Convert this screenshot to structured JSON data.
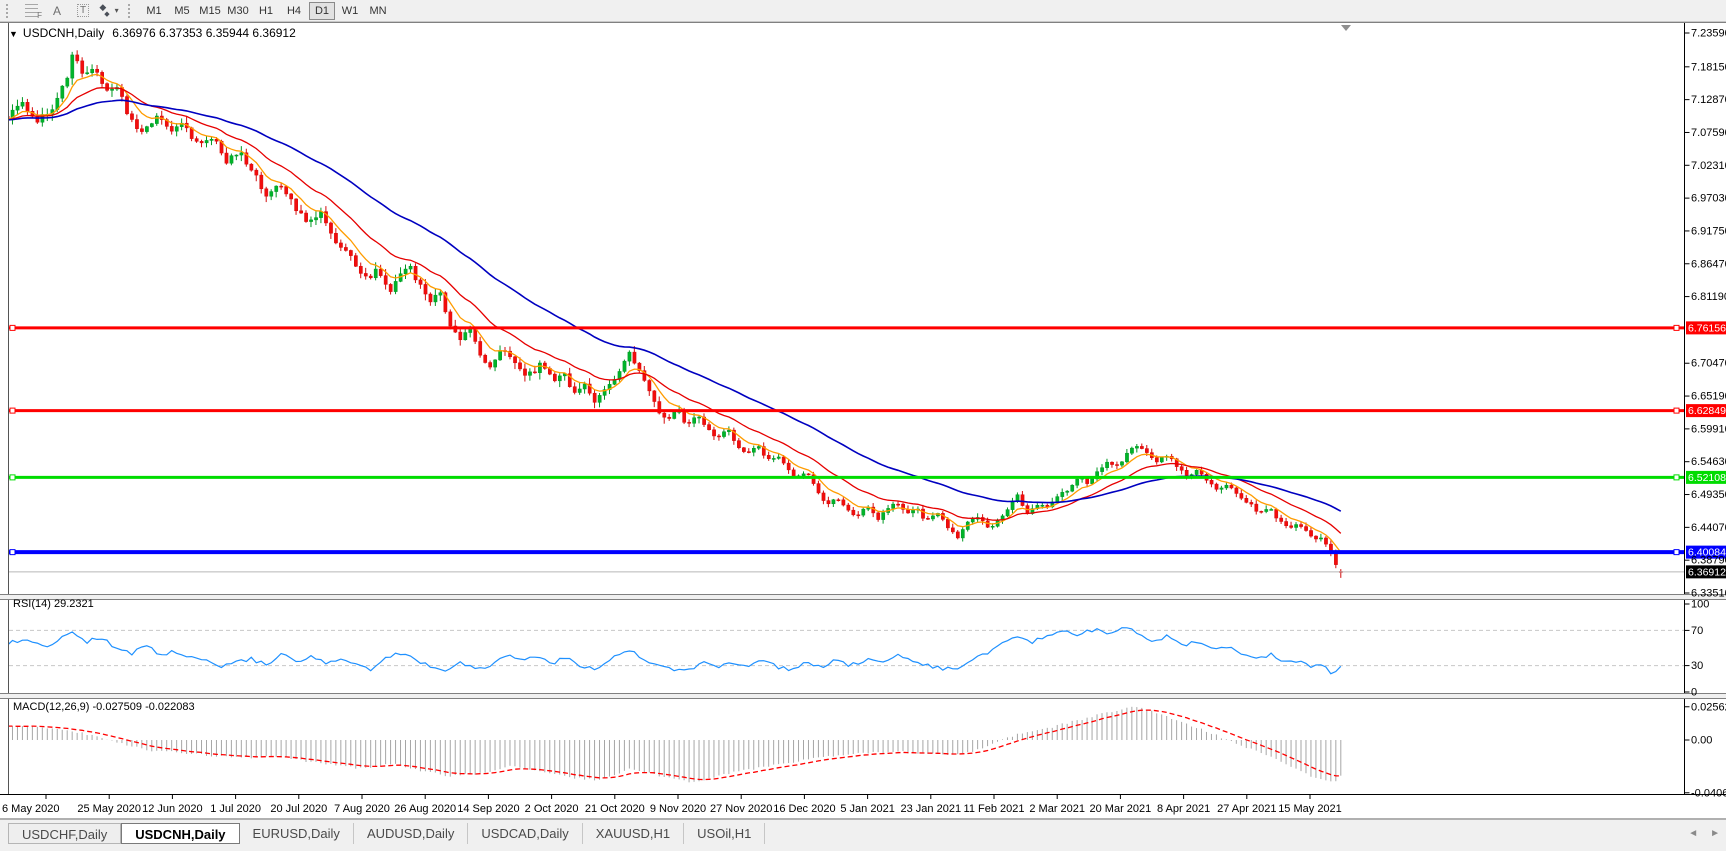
{
  "toolbar": {
    "tools": [
      {
        "name": "fibonacci",
        "glyph": "F"
      },
      {
        "name": "text",
        "glyph": "A"
      },
      {
        "name": "label",
        "glyph": "T"
      },
      {
        "name": "arrows",
        "glyph": "◆",
        "caret": "▾"
      }
    ],
    "timeframes": [
      {
        "label": "M1",
        "active": false
      },
      {
        "label": "M5",
        "active": false
      },
      {
        "label": "M15",
        "active": false
      },
      {
        "label": "M30",
        "active": false
      },
      {
        "label": "H1",
        "active": false
      },
      {
        "label": "H4",
        "active": false
      },
      {
        "label": "D1",
        "active": true
      },
      {
        "label": "W1",
        "active": false
      },
      {
        "label": "MN",
        "active": false
      }
    ]
  },
  "chart": {
    "collapse_icon": "▼",
    "title": "USDCNH,Daily",
    "ohlc_text": "6.36976 6.37353 6.35944 6.36912"
  },
  "price_axis": {
    "ticks": [
      "7.23590",
      "7.18150",
      "7.12870",
      "7.07590",
      "7.02310",
      "6.97030",
      "6.91750",
      "6.86470",
      "6.81190",
      "6.70470",
      "6.65190",
      "6.59910",
      "6.54630",
      "6.49350",
      "6.44070",
      "6.38790",
      "6.33510"
    ]
  },
  "time_axis": {
    "labels": [
      "6 May 2020",
      "25 May 2020",
      "12 Jun 2020",
      "1 Jul 2020",
      "20 Jul 2020",
      "7 Aug 2020",
      "26 Aug 2020",
      "14 Sep 2020",
      "2 Oct 2020",
      "21 Oct 2020",
      "9 Nov 2020",
      "27 Nov 2020",
      "16 Dec 2020",
      "5 Jan 2021",
      "23 Jan 2021",
      "11 Feb 2021",
      "2 Mar 2021",
      "20 Mar 2021",
      "8 Apr 2021",
      "27 Apr 2021",
      "15 May 2021"
    ]
  },
  "indicators": {
    "rsi": {
      "label": "RSI(14)",
      "value": "29.2321",
      "scale": [
        "100",
        "70",
        "30",
        "0"
      ],
      "levels": [
        30,
        70
      ],
      "range": [
        0,
        100
      ]
    },
    "macd": {
      "label": "MACD(12,26,9)",
      "values": "-0.027509 -0.022083",
      "scale": [
        "0.025623",
        "0.00",
        "-0.040687"
      ]
    }
  },
  "tabs": [
    {
      "label": "USDCHF,Daily",
      "active": false
    },
    {
      "label": "USDCNH,Daily",
      "active": true
    },
    {
      "label": "EURUSD,Daily",
      "active": false
    },
    {
      "label": "AUDUSD,Daily",
      "active": false
    },
    {
      "label": "USDCAD,Daily",
      "active": false
    },
    {
      "label": "XAUUSD,H1",
      "active": false
    },
    {
      "label": "USOil,H1",
      "active": false
    }
  ],
  "scroll_arrows": {
    "left": "◄",
    "right": "►"
  },
  "colors": {
    "bull": "#00B42A",
    "bull_edge": "#009823",
    "bear": "#F20D0D",
    "bear_edge": "#D40B0B",
    "ma_fast": "#FF9C00",
    "ma_mid": "#E60000",
    "ma_slow": "#0000C0",
    "rsi_line": "#1E90FF",
    "macd_hist": "#A6A6A6",
    "macd_signal": "#FF0000",
    "current_price_line": "#B8B8B8",
    "current_label_bg": "#000000",
    "level_dash": "#C8C8C8",
    "axis_text": "#000000"
  },
  "chart_data": {
    "type": "candlestick",
    "symbol": "USDCNH",
    "timeframe": "Daily",
    "last_ohlc": {
      "open": 6.36976,
      "high": 6.37353,
      "low": 6.35944,
      "close": 6.36912
    },
    "price_range_ticks": [
      7.2359,
      6.3351
    ],
    "horizontal_lines": [
      {
        "price": 6.76156,
        "label": "6.76156",
        "color": "#FF0000",
        "width": 3
      },
      {
        "price": 6.62849,
        "label": "6.62849",
        "color": "#FF0000",
        "width": 3
      },
      {
        "price": 6.52108,
        "label": "6.52108",
        "color": "#00DC00",
        "width": 3
      },
      {
        "price": 6.40084,
        "label": "6.40084",
        "color": "#0000FF",
        "width": 4
      }
    ],
    "current_price": {
      "value": 6.36912,
      "label": "6.36912"
    },
    "close_path_anchors": [
      [
        6,
        7.1
      ],
      [
        20,
        7.125
      ],
      [
        35,
        7.09
      ],
      [
        50,
        7.115
      ],
      [
        65,
        7.16
      ],
      [
        72,
        7.205
      ],
      [
        80,
        7.175
      ],
      [
        95,
        7.18
      ],
      [
        105,
        7.14
      ],
      [
        115,
        7.155
      ],
      [
        128,
        7.1
      ],
      [
        142,
        7.075
      ],
      [
        155,
        7.1
      ],
      [
        168,
        7.08
      ],
      [
        180,
        7.095
      ],
      [
        195,
        7.06
      ],
      [
        210,
        7.07
      ],
      [
        225,
        7.03
      ],
      [
        238,
        7.045
      ],
      [
        252,
        7.01
      ],
      [
        265,
        6.975
      ],
      [
        280,
        6.99
      ],
      [
        292,
        6.96
      ],
      [
        305,
        6.93
      ],
      [
        320,
        6.945
      ],
      [
        335,
        6.9
      ],
      [
        350,
        6.875
      ],
      [
        365,
        6.84
      ],
      [
        375,
        6.855
      ],
      [
        388,
        6.82
      ],
      [
        398,
        6.845
      ],
      [
        408,
        6.86
      ],
      [
        418,
        6.83
      ],
      [
        428,
        6.8
      ],
      [
        438,
        6.822
      ],
      [
        448,
        6.768
      ],
      [
        458,
        6.745
      ],
      [
        468,
        6.76
      ],
      [
        478,
        6.718
      ],
      [
        490,
        6.7
      ],
      [
        503,
        6.73
      ],
      [
        515,
        6.7
      ],
      [
        527,
        6.685
      ],
      [
        540,
        6.703
      ],
      [
        552,
        6.675
      ],
      [
        562,
        6.692
      ],
      [
        572,
        6.655
      ],
      [
        582,
        6.676
      ],
      [
        592,
        6.64
      ],
      [
        602,
        6.66
      ],
      [
        612,
        6.678
      ],
      [
        622,
        6.705
      ],
      [
        628,
        6.728
      ],
      [
        636,
        6.695
      ],
      [
        646,
        6.662
      ],
      [
        656,
        6.63
      ],
      [
        666,
        6.615
      ],
      [
        676,
        6.635
      ],
      [
        686,
        6.6
      ],
      [
        696,
        6.618
      ],
      [
        706,
        6.598
      ],
      [
        716,
        6.58
      ],
      [
        726,
        6.6
      ],
      [
        736,
        6.57
      ],
      [
        746,
        6.556
      ],
      [
        756,
        6.575
      ],
      [
        766,
        6.548
      ],
      [
        776,
        6.56
      ],
      [
        786,
        6.535
      ],
      [
        796,
        6.52
      ],
      [
        806,
        6.53
      ],
      [
        816,
        6.5
      ],
      [
        826,
        6.476
      ],
      [
        836,
        6.49
      ],
      [
        846,
        6.47
      ],
      [
        856,
        6.46
      ],
      [
        866,
        6.475
      ],
      [
        876,
        6.455
      ],
      [
        886,
        6.47
      ],
      [
        896,
        6.48
      ],
      [
        906,
        6.46
      ],
      [
        916,
        6.47
      ],
      [
        926,
        6.45
      ],
      [
        936,
        6.462
      ],
      [
        946,
        6.44
      ],
      [
        956,
        6.426
      ],
      [
        966,
        6.446
      ],
      [
        976,
        6.46
      ],
      [
        986,
        6.44
      ],
      [
        996,
        6.452
      ],
      [
        1006,
        6.47
      ],
      [
        1016,
        6.49
      ],
      [
        1026,
        6.462
      ],
      [
        1036,
        6.48
      ],
      [
        1046,
        6.47
      ],
      [
        1056,
        6.492
      ],
      [
        1066,
        6.502
      ],
      [
        1076,
        6.52
      ],
      [
        1086,
        6.512
      ],
      [
        1096,
        6.532
      ],
      [
        1106,
        6.546
      ],
      [
        1116,
        6.54
      ],
      [
        1126,
        6.56
      ],
      [
        1136,
        6.576
      ],
      [
        1146,
        6.56
      ],
      [
        1156,
        6.546
      ],
      [
        1166,
        6.556
      ],
      [
        1176,
        6.54
      ],
      [
        1186,
        6.522
      ],
      [
        1196,
        6.532
      ],
      [
        1206,
        6.512
      ],
      [
        1216,
        6.502
      ],
      [
        1226,
        6.512
      ],
      [
        1236,
        6.492
      ],
      [
        1246,
        6.482
      ],
      [
        1256,
        6.466
      ],
      [
        1266,
        6.472
      ],
      [
        1276,
        6.456
      ],
      [
        1286,
        6.442
      ],
      [
        1296,
        6.448
      ],
      [
        1306,
        6.432
      ],
      [
        1314,
        6.42
      ],
      [
        1320,
        6.426
      ],
      [
        1326,
        6.408
      ],
      [
        1332,
        6.39
      ],
      [
        1337,
        6.376
      ],
      [
        1341,
        6.369
      ]
    ],
    "moving_averages": [
      {
        "name": "fast",
        "period": 7,
        "color": "#FF9C00"
      },
      {
        "name": "mid",
        "period": 18,
        "color": "#E60000"
      },
      {
        "name": "slow",
        "period": 45,
        "color": "#0000C0"
      }
    ],
    "rsi": {
      "params": "14",
      "current": 29.2321,
      "anchors": [
        [
          6,
          55
        ],
        [
          25,
          60
        ],
        [
          45,
          52
        ],
        [
          60,
          62
        ],
        [
          72,
          68
        ],
        [
          85,
          57
        ],
        [
          100,
          62
        ],
        [
          115,
          50
        ],
        [
          130,
          44
        ],
        [
          145,
          52
        ],
        [
          160,
          42
        ],
        [
          175,
          46
        ],
        [
          190,
          38
        ],
        [
          205,
          35
        ],
        [
          220,
          30
        ],
        [
          235,
          33
        ],
        [
          250,
          38
        ],
        [
          265,
          30
        ],
        [
          280,
          42
        ],
        [
          295,
          34
        ],
        [
          310,
          40
        ],
        [
          325,
          32
        ],
        [
          340,
          36
        ],
        [
          355,
          30
        ],
        [
          370,
          26
        ],
        [
          385,
          38
        ],
        [
          400,
          44
        ],
        [
          415,
          35
        ],
        [
          430,
          30
        ],
        [
          445,
          25
        ],
        [
          460,
          33
        ],
        [
          475,
          27
        ],
        [
          490,
          31
        ],
        [
          505,
          42
        ],
        [
          520,
          37
        ],
        [
          535,
          41
        ],
        [
          550,
          33
        ],
        [
          565,
          39
        ],
        [
          580,
          30
        ],
        [
          595,
          27
        ],
        [
          610,
          39
        ],
        [
          622,
          45
        ],
        [
          628,
          48
        ],
        [
          640,
          37
        ],
        [
          655,
          29
        ],
        [
          670,
          27
        ],
        [
          685,
          24
        ],
        [
          700,
          33
        ],
        [
          715,
          27
        ],
        [
          730,
          35
        ],
        [
          745,
          28
        ],
        [
          760,
          34
        ],
        [
          775,
          29
        ],
        [
          790,
          26
        ],
        [
          805,
          34
        ],
        [
          820,
          28
        ],
        [
          835,
          36
        ],
        [
          850,
          30
        ],
        [
          865,
          37
        ],
        [
          880,
          33
        ],
        [
          895,
          42
        ],
        [
          910,
          36
        ],
        [
          925,
          31
        ],
        [
          940,
          27
        ],
        [
          955,
          24
        ],
        [
          970,
          38
        ],
        [
          985,
          44
        ],
        [
          1000,
          54
        ],
        [
          1015,
          61
        ],
        [
          1030,
          56
        ],
        [
          1045,
          63
        ],
        [
          1060,
          69
        ],
        [
          1075,
          65
        ],
        [
          1090,
          71
        ],
        [
          1105,
          67
        ],
        [
          1120,
          72
        ],
        [
          1135,
          68
        ],
        [
          1150,
          59
        ],
        [
          1165,
          63
        ],
        [
          1180,
          53
        ],
        [
          1195,
          57
        ],
        [
          1210,
          49
        ],
        [
          1225,
          52
        ],
        [
          1240,
          44
        ],
        [
          1255,
          38
        ],
        [
          1270,
          43
        ],
        [
          1285,
          34
        ],
        [
          1300,
          37
        ],
        [
          1310,
          30
        ],
        [
          1318,
          34
        ],
        [
          1326,
          24
        ],
        [
          1333,
          21
        ],
        [
          1338,
          26
        ],
        [
          1341,
          29.23
        ]
      ]
    },
    "macd": {
      "params": "12,26,9",
      "current_macd": -0.027509,
      "current_signal": -0.022083,
      "scale": {
        "max": 0.025623,
        "zero": 0.0,
        "min": -0.040687
      },
      "anchors": [
        [
          6,
          0.01
        ],
        [
          30,
          0.011
        ],
        [
          60,
          0.008
        ],
        [
          90,
          0.004
        ],
        [
          120,
          -0.003
        ],
        [
          150,
          -0.008
        ],
        [
          180,
          -0.01
        ],
        [
          210,
          -0.012
        ],
        [
          240,
          -0.014
        ],
        [
          270,
          -0.0125
        ],
        [
          300,
          -0.016
        ],
        [
          330,
          -0.019
        ],
        [
          360,
          -0.022
        ],
        [
          390,
          -0.018
        ],
        [
          420,
          -0.024
        ],
        [
          450,
          -0.028
        ],
        [
          480,
          -0.0255
        ],
        [
          510,
          -0.02
        ],
        [
          540,
          -0.024
        ],
        [
          570,
          -0.029
        ],
        [
          600,
          -0.031
        ],
        [
          615,
          -0.027
        ],
        [
          628,
          -0.022
        ],
        [
          645,
          -0.025
        ],
        [
          660,
          -0.028
        ],
        [
          675,
          -0.0305
        ],
        [
          690,
          -0.0325
        ],
        [
          705,
          -0.03
        ],
        [
          720,
          -0.027
        ],
        [
          735,
          -0.0245
        ],
        [
          750,
          -0.0225
        ],
        [
          765,
          -0.0205
        ],
        [
          780,
          -0.0185
        ],
        [
          795,
          -0.0165
        ],
        [
          810,
          -0.0148
        ],
        [
          825,
          -0.0132
        ],
        [
          840,
          -0.0118
        ],
        [
          855,
          -0.0108
        ],
        [
          870,
          -0.01
        ],
        [
          885,
          -0.0095
        ],
        [
          900,
          -0.0092
        ],
        [
          915,
          -0.01
        ],
        [
          930,
          -0.011
        ],
        [
          945,
          -0.0112
        ],
        [
          960,
          -0.0105
        ],
        [
          975,
          -0.008
        ],
        [
          990,
          -0.004
        ],
        [
          1010,
          0.003
        ],
        [
          1030,
          0.007
        ],
        [
          1050,
          0.01
        ],
        [
          1070,
          0.014
        ],
        [
          1090,
          0.018
        ],
        [
          1110,
          0.022
        ],
        [
          1130,
          0.0256
        ],
        [
          1145,
          0.024
        ],
        [
          1160,
          0.02
        ],
        [
          1180,
          0.014
        ],
        [
          1200,
          0.008
        ],
        [
          1220,
          0.002
        ],
        [
          1240,
          -0.004
        ],
        [
          1260,
          -0.01
        ],
        [
          1280,
          -0.017
        ],
        [
          1295,
          -0.023
        ],
        [
          1310,
          -0.028
        ],
        [
          1322,
          -0.031
        ],
        [
          1332,
          -0.0325
        ],
        [
          1341,
          -0.0275
        ]
      ]
    }
  }
}
